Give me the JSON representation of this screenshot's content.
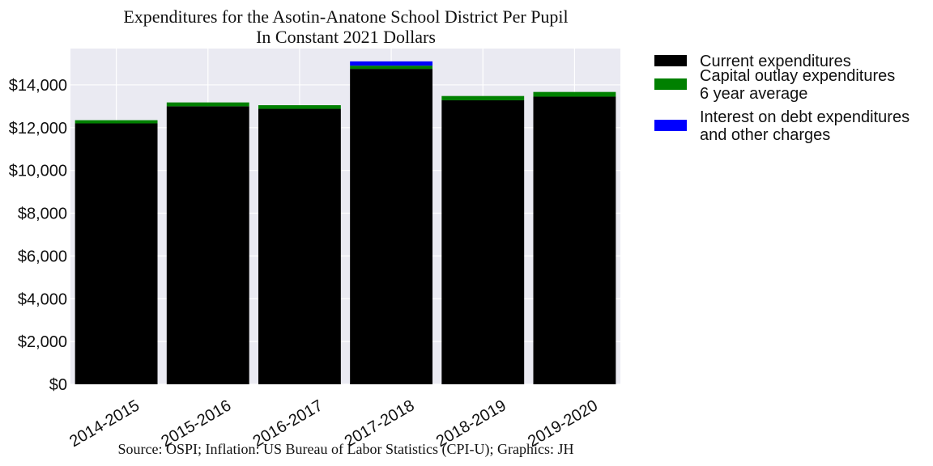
{
  "chart_data": {
    "type": "bar",
    "stacked": true,
    "title": [
      "Expenditures for the Asotin-Anatone School District Per Pupil",
      "In Constant 2021 Dollars"
    ],
    "source": "Source: OSPI; Inflation: US Bureau of Labor Statistics (CPI-U); Graphics: JH",
    "categories": [
      "2014-2015",
      "2015-2016",
      "2016-2017",
      "2017-2018",
      "2018-2019",
      "2019-2020"
    ],
    "series": [
      {
        "name": "Current expenditures",
        "color": "#000000",
        "values": [
          12200,
          13000,
          12880,
          14750,
          13280,
          13450
        ]
      },
      {
        "name": "Capital outlay expenditures\n6 year average",
        "color": "#008000",
        "values": [
          150,
          180,
          170,
          150,
          200,
          220
        ]
      },
      {
        "name": "Interest on debt expenditures\nand other charges",
        "color": "#0000ff",
        "values": [
          0,
          0,
          0,
          200,
          0,
          0
        ]
      }
    ],
    "ylim": [
      0,
      15700
    ],
    "yticks": [
      0,
      2000,
      4000,
      6000,
      8000,
      10000,
      12000,
      14000
    ],
    "ytick_labels": [
      "$0",
      "$2,000",
      "$4,000",
      "$6,000",
      "$8,000",
      "$10,000",
      "$12,000",
      "$14,000"
    ],
    "grid": true,
    "plot_background": "#eaeaf2",
    "legend_position": "outside-right"
  }
}
